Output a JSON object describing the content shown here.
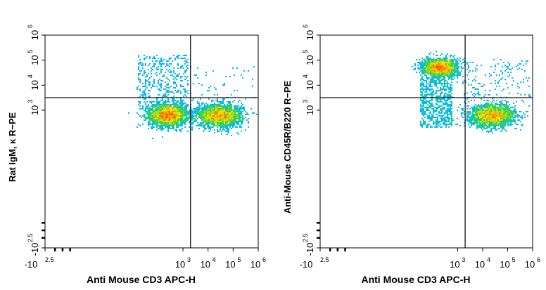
{
  "chart_data": [
    {
      "type": "scatter",
      "xlabel": "Anti Mouse CD3 APC-H",
      "ylabel": "Rat IgM, κ R−PE",
      "x_scale": "biexponential",
      "y_scale": "biexponential",
      "xlim": [
        -2.5,
        6
      ],
      "ylim": [
        -2.5,
        6
      ],
      "x_ticks": [
        "-10",
        "10",
        "10",
        "10",
        "10"
      ],
      "x_tick_exponents": [
        "2.5",
        "3",
        "4",
        "5",
        "6"
      ],
      "y_ticks": [
        "-10",
        "10",
        "10",
        "10",
        "10"
      ],
      "y_tick_exponents": [
        "2.5",
        "3",
        "4",
        "5",
        "6"
      ],
      "gate_x": 3.3,
      "gate_y": 3.5,
      "colormap": [
        "#1a1aff",
        "#00c8ff",
        "#3cd22a",
        "#ffe600",
        "#ff2a00"
      ],
      "populations": [
        {
          "center": [
            2.4,
            2.8
          ],
          "spread": [
            0.38,
            0.22
          ],
          "count": 2600
        },
        {
          "center": [
            4.45,
            2.78
          ],
          "spread": [
            0.45,
            0.22
          ],
          "count": 2400
        }
      ],
      "scattered_events": [
        {
          "x_range": [
            1.2,
            3.2
          ],
          "y_range": [
            3.0,
            5.2
          ],
          "count": 450
        },
        {
          "x_range": [
            3.3,
            5.9
          ],
          "y_range": [
            3.0,
            4.8
          ],
          "count": 60
        }
      ]
    },
    {
      "type": "scatter",
      "xlabel": "Anti Mouse CD3 APC-H",
      "ylabel": "Anti-Mouse CD45R/B220 R−PE",
      "x_scale": "biexponential",
      "y_scale": "biexponential",
      "xlim": [
        -2.5,
        6
      ],
      "ylim": [
        -2.5,
        6
      ],
      "x_ticks": [
        "-10",
        "10",
        "10",
        "10",
        "10"
      ],
      "x_tick_exponents": [
        "2.5",
        "3",
        "4",
        "5",
        "6"
      ],
      "y_ticks": [
        "-10",
        "10",
        "10",
        "10",
        "10"
      ],
      "y_tick_exponents": [
        "2.5",
        "3",
        "4",
        "5",
        "6"
      ],
      "gate_x": 3.3,
      "gate_y": 3.5,
      "colormap": [
        "#1a1aff",
        "#00c8ff",
        "#3cd22a",
        "#ffe600",
        "#ff2a00"
      ],
      "populations": [
        {
          "center": [
            2.3,
            4.7
          ],
          "spread": [
            0.35,
            0.18
          ],
          "count": 2000
        },
        {
          "center": [
            4.4,
            2.78
          ],
          "spread": [
            0.45,
            0.22
          ],
          "count": 2300
        }
      ],
      "scattered_events": [
        {
          "x_range": [
            1.5,
            2.8
          ],
          "y_range": [
            2.3,
            4.3
          ],
          "count": 700
        },
        {
          "x_range": [
            3.2,
            5.9
          ],
          "y_range": [
            3.3,
            5.0
          ],
          "count": 160
        }
      ]
    }
  ]
}
